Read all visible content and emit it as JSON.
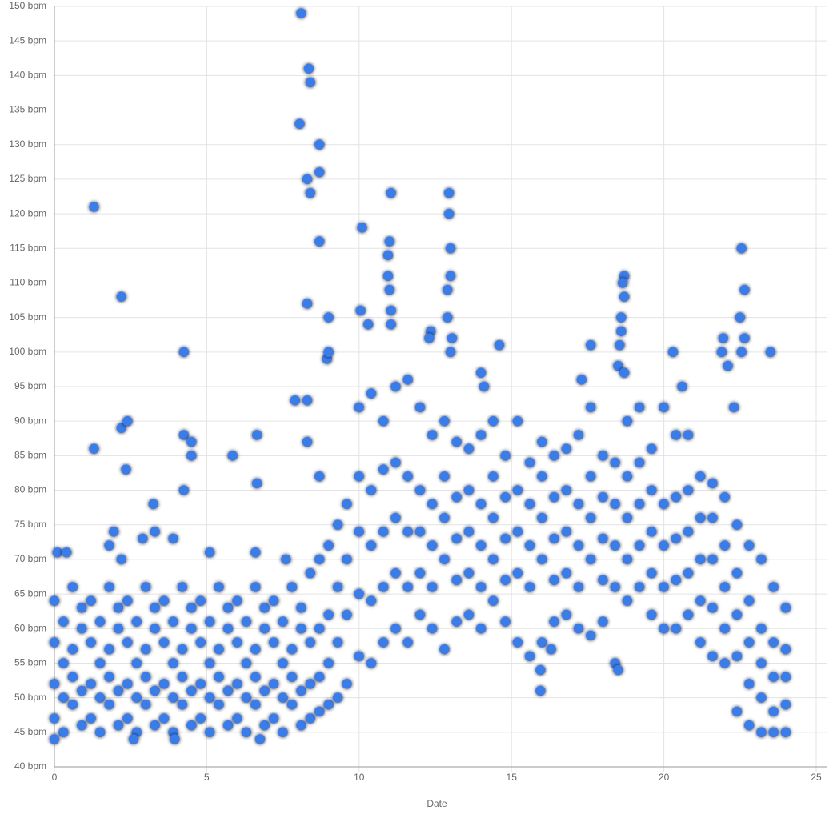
{
  "chart_data": {
    "type": "scatter",
    "x_label": "Date",
    "color": "#3a7ce8",
    "grid": true,
    "xlim": [
      0,
      25
    ],
    "xticks": [
      0,
      5,
      10,
      15,
      20,
      25
    ],
    "ylim": [
      40,
      150
    ],
    "yticks": [
      {
        "value": 40,
        "label": "40 bpm"
      },
      {
        "value": 45,
        "label": "45 bpm"
      },
      {
        "value": 50,
        "label": "50 bpm"
      },
      {
        "value": 55,
        "label": "55 bpm"
      },
      {
        "value": 60,
        "label": "60 bpm"
      },
      {
        "value": 65,
        "label": "65 bpm"
      },
      {
        "value": 70,
        "label": "70 bpm"
      },
      {
        "value": 75,
        "label": "75 bpm"
      },
      {
        "value": 80,
        "label": "80 bpm"
      },
      {
        "value": 85,
        "label": "85 bpm"
      },
      {
        "value": 90,
        "label": "90 bpm"
      },
      {
        "value": 95,
        "label": "95 bpm"
      },
      {
        "value": 100,
        "label": "100 bpm"
      },
      {
        "value": 105,
        "label": "105 bpm"
      },
      {
        "value": 110,
        "label": "110 bpm"
      },
      {
        "value": 115,
        "label": "115 bpm"
      },
      {
        "value": 120,
        "label": "120 bpm"
      },
      {
        "value": 125,
        "label": "125 bpm"
      },
      {
        "value": 130,
        "label": "130 bpm"
      },
      {
        "value": 135,
        "label": "135 bpm"
      },
      {
        "value": 140,
        "label": "140 bpm"
      },
      {
        "value": 145,
        "label": "145 bpm"
      },
      {
        "value": 150,
        "label": "150 bpm"
      }
    ],
    "x": [
      0,
      0,
      0,
      0,
      0.3,
      0.3,
      0.3,
      0.3,
      0.6,
      0.6,
      0.6,
      0.6,
      0.9,
      0.9,
      0.9,
      0.9,
      1.2,
      1.2,
      1.2,
      1.2,
      1.5,
      1.5,
      1.5,
      1.5,
      1.8,
      1.8,
      1.8,
      1.8,
      2.1,
      2.1,
      2.1,
      2.1,
      2.4,
      2.4,
      2.4,
      2.4,
      2.7,
      2.7,
      2.7,
      2.7,
      3.0,
      3.0,
      3.0,
      3.0,
      3.3,
      3.3,
      3.3,
      3.3,
      3.6,
      3.6,
      3.6,
      3.6,
      3.9,
      3.9,
      3.9,
      3.9,
      4.2,
      4.2,
      4.2,
      4.2,
      4.5,
      4.5,
      4.5,
      4.5,
      4.8,
      4.8,
      4.8,
      4.8,
      5.1,
      5.1,
      5.1,
      5.1,
      5.4,
      5.4,
      5.4,
      5.4,
      5.7,
      5.7,
      5.7,
      5.7,
      6.0,
      6.0,
      6.0,
      6.0,
      6.3,
      6.3,
      6.3,
      6.3,
      6.6,
      6.6,
      6.6,
      6.6,
      6.9,
      6.9,
      6.9,
      6.9,
      7.2,
      7.2,
      7.2,
      7.2,
      7.5,
      7.5,
      7.5,
      7.5,
      7.8,
      7.8,
      7.8,
      7.8,
      8.1,
      8.1,
      8.1,
      8.1,
      8.4,
      8.4,
      8.4,
      8.4,
      8.7,
      8.7,
      8.7,
      8.7,
      9.0,
      9.0,
      9.0,
      9.0,
      9.3,
      9.3,
      9.3,
      9.3,
      9.6,
      9.6,
      9.6,
      9.6,
      0,
      0.1,
      0.4,
      2.2,
      5.1,
      6.6,
      7.6,
      2.6,
      3.95,
      6.75,
      10.0,
      10.0,
      10.0,
      10.0,
      10.0,
      10.4,
      10.4,
      10.4,
      10.4,
      10.4,
      10.8,
      10.8,
      10.8,
      10.8,
      10.8,
      11.2,
      11.2,
      11.2,
      11.2,
      11.2,
      11.6,
      11.6,
      11.6,
      11.6,
      11.6,
      12.0,
      12.0,
      12.0,
      12.0,
      12.0,
      12.4,
      12.4,
      12.4,
      12.4,
      12.4,
      12.8,
      12.8,
      12.8,
      12.8,
      12.8,
      13.2,
      13.2,
      13.2,
      13.2,
      13.2,
      13.6,
      13.6,
      13.6,
      13.6,
      13.6,
      14.0,
      14.0,
      14.0,
      14.0,
      14.0,
      14.4,
      14.4,
      14.4,
      14.4,
      14.4,
      14.8,
      14.8,
      14.8,
      14.8,
      14.8,
      15.2,
      15.2,
      15.2,
      15.2,
      15.2,
      15.6,
      15.6,
      15.6,
      15.6,
      15.6,
      16.0,
      16.0,
      16.0,
      16.0,
      16.0,
      16.4,
      16.4,
      16.4,
      16.4,
      16.4,
      16.8,
      16.8,
      16.8,
      16.8,
      16.8,
      17.2,
      17.2,
      17.2,
      17.2,
      17.2,
      17.6,
      17.6,
      17.6,
      17.6,
      17.6,
      18.0,
      18.0,
      18.0,
      18.0,
      18.0,
      18.4,
      18.4,
      18.4,
      18.4,
      18.4,
      18.8,
      18.8,
      18.8,
      18.8,
      18.8,
      19.2,
      19.2,
      19.2,
      19.2,
      19.2,
      19.6,
      19.6,
      19.6,
      19.6,
      19.6,
      20.0,
      20.0,
      20.0,
      20.0,
      20.0,
      20.4,
      20.4,
      20.4,
      20.4,
      20.4,
      20.8,
      20.8,
      20.8,
      20.8,
      20.8,
      21.2,
      21.2,
      21.2,
      21.2,
      21.2,
      21.6,
      21.6,
      21.6,
      21.6,
      21.6,
      22.0,
      22.0,
      22.0,
      22.0,
      22.0,
      22.4,
      22.4,
      22.4,
      22.4,
      22.4,
      22.8,
      22.8,
      22.8,
      22.8,
      22.8,
      23.2,
      23.2,
      23.2,
      23.2,
      23.2,
      23.6,
      23.6,
      23.6,
      23.6,
      23.6,
      24.0,
      24.0,
      24.0,
      24.0,
      24.0,
      8.1,
      8.35,
      8.4,
      8.05,
      8.7,
      8.7,
      8.3,
      8.4,
      1.3,
      8.7,
      2.2,
      8.3,
      1.3,
      2.2,
      2.4,
      2.35,
      3.25,
      4.25,
      4.5,
      4.5,
      4.25,
      4.25,
      5.85,
      6.65,
      6.65,
      3.9,
      3.3,
      1.95,
      1.8,
      2.9,
      7.9,
      8.3,
      8.3,
      8.7,
      9.0,
      8.95,
      9.0,
      10.1,
      10.05,
      11.05,
      11.0,
      10.95,
      10.95,
      11.0,
      11.05,
      11.05,
      10.3,
      12.95,
      12.95,
      13.0,
      13.0,
      12.9,
      12.9,
      12.35,
      12.3,
      13.05,
      13.0,
      14.6,
      17.6,
      18.7,
      18.65,
      18.7,
      18.6,
      18.6,
      18.55,
      18.5,
      20.3,
      20.6,
      22.55,
      22.65,
      22.5,
      22.65,
      22.55,
      23.5,
      21.95,
      21.9,
      22.1,
      22.3,
      15.95,
      15.95,
      16.3,
      18.5,
      17.3,
      18.7,
      14.0,
      14.1
    ],
    "values": [
      47,
      52,
      58,
      64,
      45,
      50,
      55,
      61,
      49,
      53,
      57,
      66,
      46,
      51,
      60,
      63,
      47,
      52,
      58,
      64,
      45,
      50,
      55,
      61,
      49,
      53,
      57,
      66,
      46,
      51,
      60,
      63,
      47,
      52,
      58,
      64,
      45,
      50,
      55,
      61,
      49,
      53,
      57,
      66,
      46,
      51,
      60,
      63,
      47,
      52,
      58,
      64,
      45,
      50,
      55,
      61,
      49,
      53,
      57,
      66,
      46,
      51,
      60,
      63,
      47,
      52,
      58,
      64,
      45,
      50,
      55,
      61,
      49,
      53,
      57,
      66,
      46,
      51,
      60,
      63,
      47,
      52,
      58,
      64,
      45,
      50,
      55,
      61,
      49,
      53,
      57,
      66,
      46,
      51,
      60,
      63,
      47,
      52,
      58,
      64,
      45,
      50,
      55,
      61,
      49,
      53,
      57,
      66,
      46,
      51,
      60,
      63,
      47,
      52,
      58,
      68,
      48,
      53,
      60,
      70,
      49,
      55,
      62,
      72,
      50,
      58,
      66,
      75,
      52,
      62,
      70,
      78,
      44,
      71,
      71,
      70,
      71,
      71,
      70,
      44,
      44,
      44,
      56,
      65,
      74,
      82,
      92,
      55,
      64,
      72,
      80,
      94,
      58,
      66,
      74,
      83,
      90,
      60,
      68,
      76,
      84,
      95,
      58,
      66,
      74,
      82,
      96,
      62,
      68,
      74,
      80,
      92,
      60,
      66,
      72,
      78,
      88,
      57,
      70,
      76,
      82,
      90,
      61,
      67,
      73,
      79,
      87,
      62,
      68,
      74,
      80,
      86,
      60,
      66,
      72,
      78,
      88,
      64,
      70,
      76,
      82,
      90,
      61,
      67,
      73,
      79,
      85,
      58,
      68,
      74,
      80,
      90,
      56,
      66,
      72,
      78,
      84,
      58,
      70,
      76,
      82,
      87,
      61,
      67,
      73,
      79,
      85,
      62,
      68,
      74,
      80,
      86,
      60,
      66,
      72,
      78,
      88,
      59,
      70,
      76,
      82,
      92,
      61,
      67,
      73,
      79,
      85,
      55,
      66,
      72,
      78,
      84,
      64,
      70,
      76,
      82,
      90,
      66,
      72,
      78,
      84,
      92,
      62,
      68,
      74,
      80,
      86,
      60,
      66,
      72,
      78,
      92,
      60,
      67,
      73,
      79,
      88,
      62,
      68,
      74,
      80,
      88,
      58,
      64,
      70,
      76,
      82,
      56,
      63,
      70,
      76,
      81,
      55,
      60,
      66,
      72,
      79,
      48,
      56,
      62,
      68,
      75,
      46,
      52,
      58,
      64,
      72,
      45,
      50,
      55,
      60,
      70,
      45,
      48,
      53,
      58,
      66,
      45,
      49,
      53,
      57,
      63,
      149,
      141,
      139,
      133,
      130,
      126,
      125,
      123,
      121,
      116,
      108,
      107,
      86,
      89,
      90,
      83,
      78,
      88,
      87,
      85,
      80,
      100,
      85,
      88,
      81,
      73,
      74,
      74,
      72,
      73,
      93,
      93,
      87,
      82,
      105,
      99,
      100,
      118,
      106,
      123,
      116,
      114,
      111,
      109,
      106,
      104,
      104,
      123,
      120,
      115,
      111,
      109,
      105,
      103,
      102,
      102,
      100,
      101,
      101,
      111,
      110,
      108,
      105,
      103,
      101,
      98,
      100,
      95,
      115,
      109,
      105,
      102,
      100,
      100,
      102,
      100,
      98,
      92,
      51,
      54,
      57,
      54,
      96,
      97,
      97,
      95
    ]
  }
}
